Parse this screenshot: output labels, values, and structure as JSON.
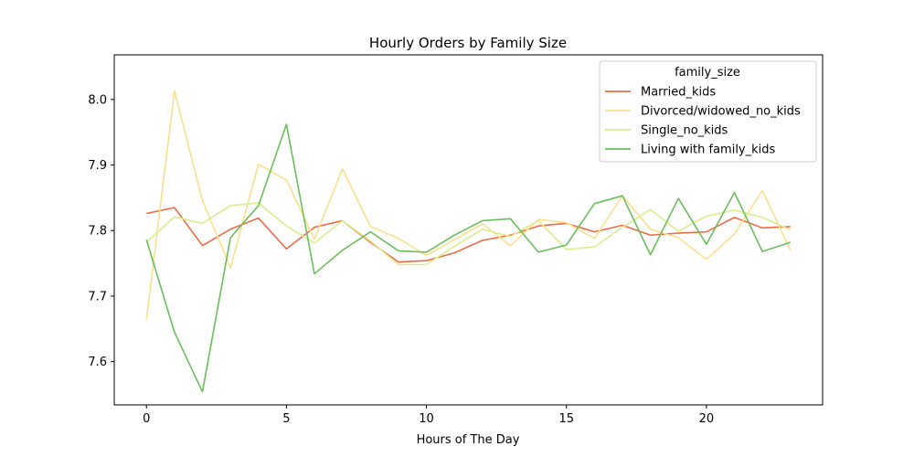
{
  "chart_data": {
    "type": "line",
    "title": "Hourly Orders by Family Size",
    "xlabel": "Hours of The Day",
    "ylabel": "",
    "xlim": [
      -1.15,
      24.15
    ],
    "ylim": [
      7.534,
      8.068
    ],
    "xticks": [
      0,
      5,
      10,
      15,
      20
    ],
    "yticks": [
      7.6,
      7.7,
      7.8,
      7.9,
      8.0
    ],
    "xtick_labels": [
      "0",
      "5",
      "10",
      "15",
      "20"
    ],
    "ytick_labels": [
      "7.6",
      "7.7",
      "7.8",
      "7.9",
      "8.0"
    ],
    "grid": false,
    "legend": {
      "title": "family_size",
      "placement": "top-right"
    },
    "x": [
      0,
      1,
      2,
      3,
      4,
      5,
      6,
      7,
      8,
      9,
      10,
      11,
      12,
      13,
      14,
      15,
      16,
      17,
      18,
      19,
      20,
      21,
      22,
      23
    ],
    "series": [
      {
        "name": "Married_kids",
        "color": "#ef6b45",
        "values": [
          7.826,
          7.835,
          7.777,
          7.802,
          7.819,
          7.772,
          7.805,
          7.815,
          7.782,
          7.752,
          7.754,
          7.766,
          7.785,
          7.793,
          7.807,
          7.811,
          7.798,
          7.808,
          7.793,
          7.796,
          7.798,
          7.82,
          7.804,
          7.806
        ]
      },
      {
        "name": "Divorced/widowed_no_kids",
        "color": "#f9e08c",
        "values": [
          7.664,
          8.013,
          7.846,
          7.743,
          7.901,
          7.877,
          7.787,
          7.894,
          7.806,
          7.788,
          7.762,
          7.786,
          7.81,
          7.777,
          7.817,
          7.812,
          7.788,
          7.853,
          7.802,
          7.789,
          7.756,
          7.795,
          7.861,
          7.77
        ]
      },
      {
        "name": "Single_no_kids",
        "color": "#dcec8e",
        "values": [
          7.782,
          7.821,
          7.811,
          7.838,
          7.842,
          7.807,
          7.781,
          7.815,
          7.784,
          7.748,
          7.748,
          7.776,
          7.802,
          7.791,
          7.815,
          7.771,
          7.775,
          7.805,
          7.832,
          7.799,
          7.822,
          7.831,
          7.82,
          7.801
        ]
      },
      {
        "name": "Living with family_kids",
        "color": "#6bbf5c",
        "values": [
          7.786,
          7.645,
          7.554,
          7.789,
          7.838,
          7.962,
          7.734,
          7.77,
          7.798,
          7.769,
          7.767,
          7.793,
          7.815,
          7.818,
          7.767,
          7.778,
          7.841,
          7.853,
          7.763,
          7.849,
          7.779,
          7.858,
          7.768,
          7.782
        ]
      }
    ]
  }
}
